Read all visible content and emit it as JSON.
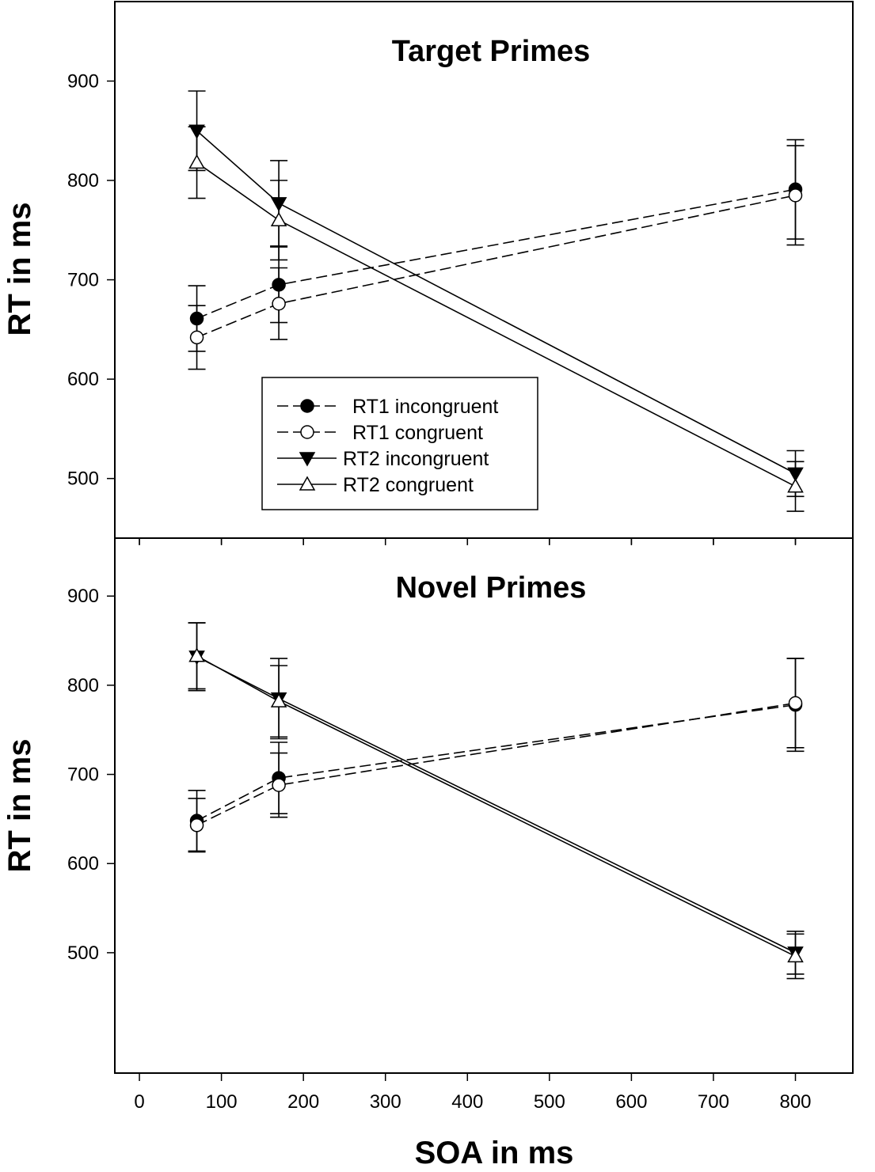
{
  "chart_data": {
    "type": "line",
    "xlabel": "SOA in ms",
    "xlim": [
      -30,
      870
    ],
    "x_ticks": [
      0,
      100,
      200,
      300,
      400,
      500,
      600,
      700,
      800
    ],
    "y_ticks": [
      500,
      600,
      700,
      800,
      900
    ],
    "grid": false,
    "panels": [
      {
        "title": "Target Primes",
        "ylabel": "RT in ms",
        "ylim": [
          440,
          980
        ],
        "legend_position": "bottom-center",
        "series": [
          {
            "name": "RT1 incongruent",
            "marker": "filled-circle",
            "line": "dashed",
            "x": [
              70,
              170,
              800
            ],
            "y": [
              661,
              695,
              791
            ],
            "err": [
              33,
              38,
              50
            ]
          },
          {
            "name": "RT1 congruent",
            "marker": "open-circle",
            "line": "dashed",
            "x": [
              70,
              170,
              800
            ],
            "y": [
              642,
              676,
              785
            ],
            "err": [
              32,
              36,
              50
            ]
          },
          {
            "name": "RT2 incongruent",
            "marker": "filled-triangle-down",
            "line": "solid",
            "x": [
              70,
              170,
              800
            ],
            "y": [
              850,
              777,
              505
            ],
            "err": [
              40,
              43,
              23
            ]
          },
          {
            "name": "RT2 congruent",
            "marker": "open-triangle-up",
            "line": "solid",
            "x": [
              70,
              170,
              800
            ],
            "y": [
              818,
              760,
              492
            ],
            "err": [
              36,
              40,
              25
            ]
          }
        ]
      },
      {
        "title": "Novel Primes",
        "ylabel": "RT in ms",
        "ylim": [
          365,
          965
        ],
        "legend_position": "",
        "series": [
          {
            "name": "RT1 incongruent",
            "marker": "filled-circle",
            "line": "dashed",
            "x": [
              70,
              170,
              800
            ],
            "y": [
              648,
              696,
              778
            ],
            "err": [
              34,
              40,
              52
            ]
          },
          {
            "name": "RT1 congruent",
            "marker": "open-circle",
            "line": "dashed",
            "x": [
              70,
              170,
              800
            ],
            "y": [
              643,
              688,
              780
            ],
            "err": [
              30,
              36,
              50
            ]
          },
          {
            "name": "RT2 incongruent",
            "marker": "filled-triangle-down",
            "line": "solid",
            "x": [
              70,
              170,
              800
            ],
            "y": [
              832,
              785,
              500
            ],
            "err": [
              38,
              45,
              24
            ]
          },
          {
            "name": "RT2 congruent",
            "marker": "open-triangle-up",
            "line": "solid",
            "x": [
              70,
              170,
              800
            ],
            "y": [
              833,
              782,
              496
            ],
            "err": [
              37,
              40,
              25
            ]
          }
        ]
      }
    ]
  }
}
